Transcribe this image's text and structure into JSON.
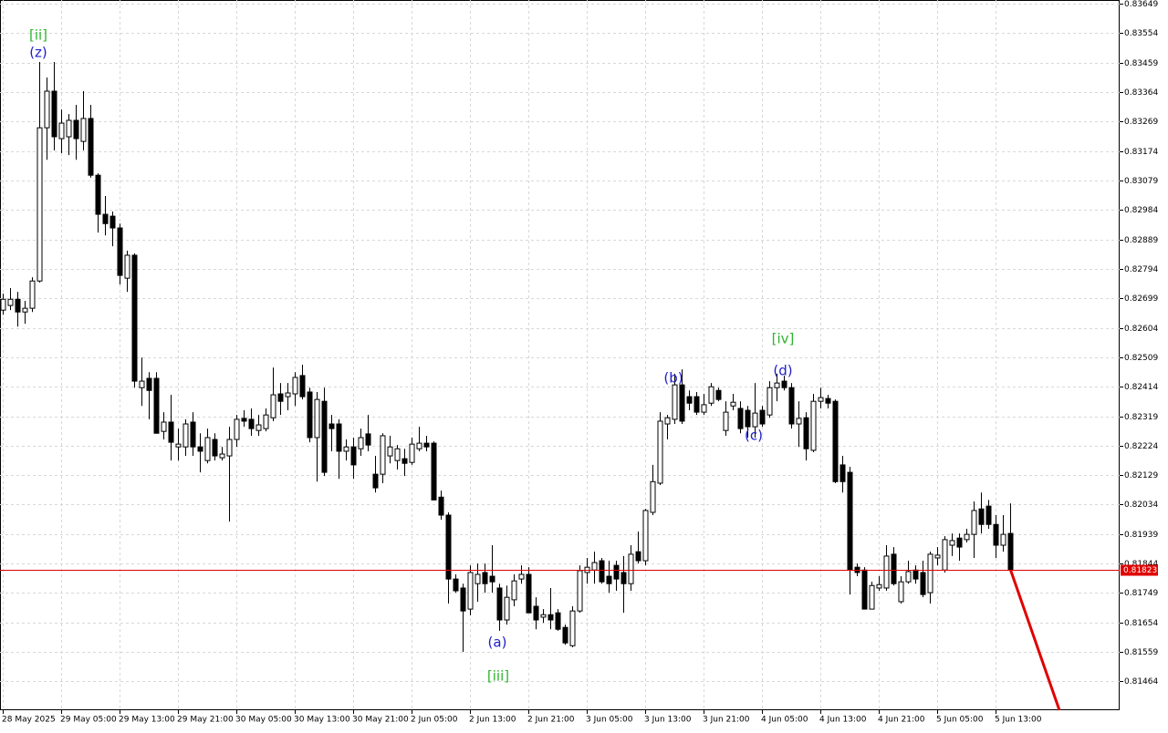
{
  "chart_data": {
    "type": "candlestick",
    "bull_color": "#ffffff",
    "bear_color": "#000000",
    "grid": true,
    "current_price_color": "#e00000",
    "ylim": [
      0.81371,
      0.83661
    ],
    "yticks": [
      0.83649,
      0.83554,
      0.83459,
      0.83364,
      0.83269,
      0.83174,
      0.83079,
      0.82984,
      0.82889,
      0.82794,
      0.82699,
      0.82604,
      0.82509,
      0.82414,
      0.82319,
      0.82224,
      0.82129,
      0.82034,
      0.81939,
      0.81844,
      0.81749,
      0.81654,
      0.81559,
      0.81464
    ],
    "current_price": 0.81823,
    "categories": [
      "28 May 2025",
      null,
      null,
      null,
      null,
      null,
      null,
      null,
      "29 May 05:00",
      null,
      null,
      null,
      null,
      null,
      null,
      null,
      "29 May 13:00",
      null,
      null,
      null,
      null,
      null,
      null,
      null,
      "29 May 21:00",
      null,
      null,
      null,
      null,
      null,
      null,
      null,
      "30 May 05:00",
      null,
      null,
      null,
      null,
      null,
      null,
      null,
      "30 May 13:00",
      null,
      null,
      null,
      null,
      null,
      null,
      null,
      "30 May 21:00",
      null,
      null,
      null,
      null,
      null,
      null,
      null,
      "2 Jun 05:00",
      null,
      null,
      null,
      null,
      null,
      null,
      null,
      "2 Jun 13:00",
      null,
      null,
      null,
      null,
      null,
      null,
      null,
      "2 Jun 21:00",
      null,
      null,
      null,
      null,
      null,
      null,
      null,
      "3 Jun 05:00",
      null,
      null,
      null,
      null,
      null,
      null,
      null,
      "3 Jun 13:00",
      null,
      null,
      null,
      null,
      null,
      null,
      null,
      "3 Jun 21:00",
      null,
      null,
      null,
      null,
      null,
      null,
      null,
      "4 Jun 05:00",
      null,
      null,
      null,
      null,
      null,
      null,
      null,
      "4 Jun 13:00",
      null,
      null,
      null,
      null,
      null,
      null,
      null,
      "4 Jun 21:00",
      null,
      null,
      null,
      null,
      null,
      null,
      null,
      "5 Jun 05:00",
      null,
      null,
      null,
      null,
      null,
      null,
      null,
      "5 Jun 13:00",
      null,
      null
    ],
    "ohlc": [
      [
        0.82661,
        0.82714,
        0.82646,
        0.82696
      ],
      [
        0.82676,
        0.82732,
        0.82661,
        0.82696
      ],
      [
        0.82696,
        0.8272,
        0.82608,
        0.82655
      ],
      [
        0.82655,
        0.82691,
        0.82617,
        0.82667
      ],
      [
        0.82667,
        0.82767,
        0.82655,
        0.82755
      ],
      [
        0.82755,
        0.83461,
        0.8275,
        0.83249
      ],
      [
        0.83249,
        0.83411,
        0.83146,
        0.83367
      ],
      [
        0.83367,
        0.83461,
        0.83176,
        0.8322
      ],
      [
        0.83214,
        0.83308,
        0.83167,
        0.83264
      ],
      [
        0.8322,
        0.83293,
        0.83161,
        0.83273
      ],
      [
        0.83273,
        0.83323,
        0.83146,
        0.83214
      ],
      [
        0.83205,
        0.83367,
        0.83176,
        0.83279
      ],
      [
        0.83279,
        0.83323,
        0.83088,
        0.83096
      ],
      [
        0.83096,
        0.83102,
        0.82911,
        0.8297
      ],
      [
        0.8297,
        0.83029,
        0.82902,
        0.8294
      ],
      [
        0.82964,
        0.82979,
        0.82867,
        0.82926
      ],
      [
        0.82926,
        0.8294,
        0.82744,
        0.82773
      ],
      [
        0.82764,
        0.82853,
        0.8272,
        0.82838
      ],
      [
        0.82838,
        0.82844,
        0.82411,
        0.82432
      ],
      [
        0.82411,
        0.82508,
        0.82352,
        0.82432
      ],
      [
        0.82441,
        0.82461,
        0.82309,
        0.82402
      ],
      [
        0.82441,
        0.82461,
        0.82264,
        0.82264
      ],
      [
        0.8227,
        0.82332,
        0.82244,
        0.823
      ],
      [
        0.823,
        0.82388,
        0.82176,
        0.82235
      ],
      [
        0.8222,
        0.82279,
        0.82176,
        0.82229
      ],
      [
        0.8222,
        0.82309,
        0.82191,
        0.82294
      ],
      [
        0.823,
        0.82332,
        0.82191,
        0.8222
      ],
      [
        0.8222,
        0.82264,
        0.82138,
        0.82206
      ],
      [
        0.82176,
        0.82279,
        0.82167,
        0.8225
      ],
      [
        0.82244,
        0.82264,
        0.82176,
        0.82191
      ],
      [
        0.82185,
        0.8222,
        0.82176,
        0.82197
      ],
      [
        0.82191,
        0.82285,
        0.81979,
        0.82244
      ],
      [
        0.82244,
        0.82323,
        0.8222,
        0.82309
      ],
      [
        0.82312,
        0.82338,
        0.82285,
        0.82303
      ],
      [
        0.82309,
        0.82344,
        0.82256,
        0.82279
      ],
      [
        0.82273,
        0.82323,
        0.82256,
        0.82291
      ],
      [
        0.82279,
        0.82344,
        0.8227,
        0.82323
      ],
      [
        0.82314,
        0.82476,
        0.82303,
        0.82388
      ],
      [
        0.82391,
        0.82426,
        0.82323,
        0.82367
      ],
      [
        0.82382,
        0.82426,
        0.82338,
        0.82394
      ],
      [
        0.82391,
        0.82461,
        0.82352,
        0.82444
      ],
      [
        0.8245,
        0.82485,
        0.82373,
        0.82382
      ],
      [
        0.82397,
        0.82411,
        0.82235,
        0.8225
      ],
      [
        0.8225,
        0.82397,
        0.82108,
        0.82373
      ],
      [
        0.82367,
        0.82411,
        0.82126,
        0.82138
      ],
      [
        0.82294,
        0.82323,
        0.82206,
        0.82279
      ],
      [
        0.82294,
        0.82309,
        0.82117,
        0.82206
      ],
      [
        0.82206,
        0.82244,
        0.82176,
        0.8222
      ],
      [
        0.8222,
        0.8225,
        0.82117,
        0.82162
      ],
      [
        0.82214,
        0.82279,
        0.82191,
        0.8225
      ],
      [
        0.82262,
        0.82323,
        0.82206,
        0.82226
      ],
      [
        0.82132,
        0.82191,
        0.82073,
        0.82088
      ],
      [
        0.82132,
        0.82264,
        0.82103,
        0.82256
      ],
      [
        0.82191,
        0.82256,
        0.82167,
        0.8222
      ],
      [
        0.82176,
        0.82226,
        0.82147,
        0.82214
      ],
      [
        0.82182,
        0.82214,
        0.82126,
        0.82167
      ],
      [
        0.8217,
        0.8225,
        0.82162,
        0.82229
      ],
      [
        0.82214,
        0.82285,
        0.82206,
        0.82232
      ],
      [
        0.82232,
        0.82256,
        0.82206,
        0.8222
      ],
      [
        0.82232,
        0.82238,
        0.82049,
        0.82049
      ],
      [
        0.82058,
        0.82079,
        0.81985,
        0.82
      ],
      [
        0.82,
        0.82009,
        0.81715,
        0.81794
      ],
      [
        0.81794,
        0.81809,
        0.8175,
        0.81756
      ],
      [
        0.81765,
        0.81779,
        0.81559,
        0.81691
      ],
      [
        0.81697,
        0.81838,
        0.81677,
        0.81815
      ],
      [
        0.81779,
        0.81844,
        0.81721,
        0.81809
      ],
      [
        0.81815,
        0.81844,
        0.8175,
        0.81779
      ],
      [
        0.81803,
        0.81903,
        0.8175,
        0.81785
      ],
      [
        0.81765,
        0.81779,
        0.81627,
        0.81662
      ],
      [
        0.81662,
        0.81773,
        0.81647,
        0.81735
      ],
      [
        0.81727,
        0.81809,
        0.81706,
        0.81788
      ],
      [
        0.81794,
        0.81838,
        0.81779,
        0.81809
      ],
      [
        0.81809,
        0.81832,
        0.81685,
        0.81685
      ],
      [
        0.81706,
        0.81735,
        0.81632,
        0.81662
      ],
      [
        0.81671,
        0.81697,
        0.81653,
        0.81679
      ],
      [
        0.81679,
        0.81765,
        0.81632,
        0.81662
      ],
      [
        0.81685,
        0.81697,
        0.81627,
        0.81632
      ],
      [
        0.81638,
        0.81647,
        0.81582,
        0.81588
      ],
      [
        0.81579,
        0.81706,
        0.81574,
        0.81691
      ],
      [
        0.81691,
        0.81838,
        0.81685,
        0.81821
      ],
      [
        0.81815,
        0.81862,
        0.81779,
        0.81832
      ],
      [
        0.81823,
        0.81882,
        0.81779,
        0.81847
      ],
      [
        0.81853,
        0.81862,
        0.81779,
        0.81785
      ],
      [
        0.81803,
        0.81853,
        0.8175,
        0.81779
      ],
      [
        0.81838,
        0.81853,
        0.81756,
        0.81794
      ],
      [
        0.81815,
        0.81868,
        0.81685,
        0.81779
      ],
      [
        0.81779,
        0.81903,
        0.81756,
        0.81874
      ],
      [
        0.81882,
        0.81947,
        0.81844,
        0.81853
      ],
      [
        0.81853,
        0.8202,
        0.81838,
        0.82015
      ],
      [
        0.82009,
        0.82162,
        0.82,
        0.82108
      ],
      [
        0.82103,
        0.82332,
        0.82097,
        0.82303
      ],
      [
        0.82294,
        0.82323,
        0.82244,
        0.82314
      ],
      [
        0.82309,
        0.82456,
        0.82294,
        0.8242
      ],
      [
        0.8242,
        0.8247,
        0.82294,
        0.82303
      ],
      [
        0.82382,
        0.82402,
        0.82338,
        0.82361
      ],
      [
        0.82382,
        0.82397,
        0.82323,
        0.82332
      ],
      [
        0.82332,
        0.82391,
        0.82323,
        0.82356
      ],
      [
        0.82361,
        0.82426,
        0.82352,
        0.82414
      ],
      [
        0.82402,
        0.82411,
        0.82367,
        0.82373
      ],
      [
        0.82273,
        0.82367,
        0.82256,
        0.82332
      ],
      [
        0.82352,
        0.82391,
        0.82338,
        0.82364
      ],
      [
        0.82344,
        0.82367,
        0.82264,
        0.82279
      ],
      [
        0.82338,
        0.82352,
        0.8225,
        0.82285
      ],
      [
        0.82285,
        0.82426,
        0.8225,
        0.82329
      ],
      [
        0.82338,
        0.82352,
        0.82285,
        0.82294
      ],
      [
        0.82323,
        0.82432,
        0.82314,
        0.82411
      ],
      [
        0.82411,
        0.82456,
        0.82367,
        0.82426
      ],
      [
        0.82432,
        0.8245,
        0.82402,
        0.82411
      ],
      [
        0.82411,
        0.82426,
        0.82279,
        0.82294
      ],
      [
        0.82294,
        0.82367,
        0.8222,
        0.82312
      ],
      [
        0.82314,
        0.82332,
        0.82176,
        0.82214
      ],
      [
        0.82209,
        0.82391,
        0.82203,
        0.82367
      ],
      [
        0.82367,
        0.82411,
        0.82344,
        0.82379
      ],
      [
        0.82376,
        0.82388,
        0.82344,
        0.82361
      ],
      [
        0.82367,
        0.82373,
        0.82103,
        0.82108
      ],
      [
        0.82162,
        0.82191,
        0.82073,
        0.82108
      ],
      [
        0.82138,
        0.82156,
        0.81744,
        0.81823
      ],
      [
        0.81832,
        0.81844,
        0.81803,
        0.81815
      ],
      [
        0.81823,
        0.81832,
        0.81697,
        0.81697
      ],
      [
        0.81697,
        0.81785,
        0.81697,
        0.81773
      ],
      [
        0.81765,
        0.81803,
        0.81756,
        0.81776
      ],
      [
        0.81765,
        0.81903,
        0.81756,
        0.81868
      ],
      [
        0.81874,
        0.81897,
        0.81773,
        0.81779
      ],
      [
        0.81721,
        0.81803,
        0.81715,
        0.81785
      ],
      [
        0.81785,
        0.81853,
        0.81779,
        0.81818
      ],
      [
        0.81823,
        0.81838,
        0.81779,
        0.81794
      ],
      [
        0.81815,
        0.81853,
        0.81735,
        0.81744
      ],
      [
        0.8175,
        0.81882,
        0.81715,
        0.81874
      ],
      [
        0.81862,
        0.81897,
        0.81838,
        0.81871
      ],
      [
        0.81823,
        0.81932,
        0.81815,
        0.81921
      ],
      [
        0.81903,
        0.81941,
        0.81868,
        0.81918
      ],
      [
        0.81926,
        0.81941,
        0.81853,
        0.81897
      ],
      [
        0.81921,
        0.81956,
        0.81912,
        0.81938
      ],
      [
        0.81938,
        0.82044,
        0.81862,
        0.82015
      ],
      [
        0.8202,
        0.82073,
        0.81941,
        0.8197
      ],
      [
        0.82029,
        0.82049,
        0.81956,
        0.8197
      ],
      [
        0.8197,
        0.82,
        0.81862,
        0.81903
      ],
      [
        0.81903,
        0.82,
        0.81882,
        0.81938
      ],
      [
        0.81941,
        0.82038,
        0.81815,
        0.81823
      ]
    ],
    "annotations": [
      {
        "text": "[ii]",
        "color": "#2db52d"
      },
      {
        "text": "(z)",
        "color": "#2020c8"
      },
      {
        "text": "(a)",
        "color": "#2020c8"
      },
      {
        "text": "[iii]",
        "color": "#2db52d"
      },
      {
        "text": "(b)",
        "color": "#2020c8"
      },
      {
        "text": "(c)",
        "color": "#2020c8"
      },
      {
        "text": "(d)",
        "color": "#2020c8"
      },
      {
        "text": "[iv]",
        "color": "#2db52d"
      }
    ]
  }
}
